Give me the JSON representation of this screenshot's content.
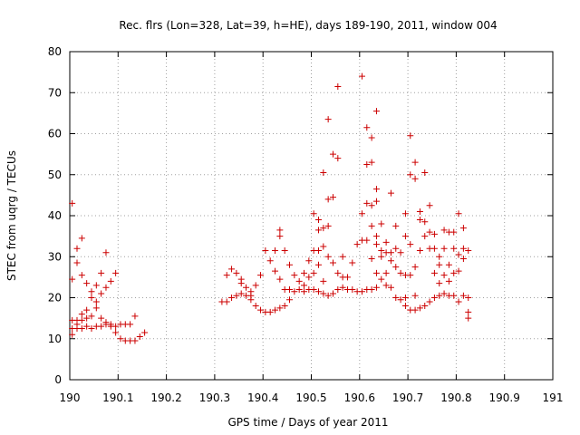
{
  "chart_data": {
    "type": "scatter",
    "title": "Rec. flrs (Lon=328, Lat=39, h=HE), days 189-190, 2011, window 004",
    "xlabel": "GPS time / Days of year 2011",
    "ylabel": "STEC from uqrg / TECUs",
    "xlim": [
      190,
      191
    ],
    "ylim": [
      0,
      80
    ],
    "xticks": [
      190,
      190.1,
      190.2,
      190.3,
      190.4,
      190.5,
      190.6,
      190.7,
      190.8,
      190.9,
      191
    ],
    "xtick_labels": [
      "190",
      "190.1",
      "190.2",
      "190.3",
      "190.4",
      "190.5",
      "190.6",
      "190.7",
      "190.8",
      "190.9",
      "191"
    ],
    "yticks": [
      0,
      10,
      20,
      30,
      40,
      50,
      60,
      70,
      80
    ],
    "ytick_labels": [
      "0",
      "10",
      "20",
      "30",
      "40",
      "50",
      "60",
      "70",
      "80"
    ],
    "grid": true,
    "marker": "+",
    "color": "#cc0000",
    "series": [
      {
        "points": [
          [
            190.005,
            43.0
          ],
          [
            190.005,
            24.5
          ],
          [
            190.005,
            14.5
          ],
          [
            190.005,
            12.5
          ],
          [
            190.005,
            11.0
          ],
          [
            190.015,
            32.0
          ],
          [
            190.015,
            28.5
          ],
          [
            190.015,
            14.5
          ],
          [
            190.015,
            13.5
          ],
          [
            190.015,
            12.5
          ],
          [
            190.025,
            34.5
          ],
          [
            190.025,
            25.5
          ],
          [
            190.025,
            16.0
          ],
          [
            190.025,
            14.5
          ],
          [
            190.025,
            12.5
          ],
          [
            190.035,
            23.5
          ],
          [
            190.035,
            17.0
          ],
          [
            190.035,
            15.0
          ],
          [
            190.035,
            13.0
          ],
          [
            190.045,
            21.5
          ],
          [
            190.045,
            20.0
          ],
          [
            190.045,
            15.5
          ],
          [
            190.045,
            12.5
          ],
          [
            190.055,
            23.0
          ],
          [
            190.055,
            19.0
          ],
          [
            190.055,
            17.5
          ],
          [
            190.055,
            13.0
          ],
          [
            190.065,
            26.0
          ],
          [
            190.065,
            21.0
          ],
          [
            190.065,
            15.0
          ],
          [
            190.065,
            13.0
          ],
          [
            190.075,
            31.0
          ],
          [
            190.075,
            22.5
          ],
          [
            190.075,
            14.0
          ],
          [
            190.075,
            13.5
          ],
          [
            190.085,
            24.0
          ],
          [
            190.085,
            13.5
          ],
          [
            190.085,
            13.0
          ],
          [
            190.095,
            26.0
          ],
          [
            190.095,
            13.0
          ],
          [
            190.095,
            11.5
          ],
          [
            190.105,
            13.5
          ],
          [
            190.105,
            10.0
          ],
          [
            190.115,
            13.5
          ],
          [
            190.115,
            9.5
          ],
          [
            190.125,
            13.5
          ],
          [
            190.125,
            9.5
          ],
          [
            190.135,
            15.5
          ],
          [
            190.135,
            9.5
          ],
          [
            190.145,
            10.5
          ],
          [
            190.155,
            11.5
          ],
          [
            190.315,
            19.0
          ],
          [
            190.325,
            25.5
          ],
          [
            190.325,
            19.0
          ],
          [
            190.335,
            27.0
          ],
          [
            190.335,
            20.0
          ],
          [
            190.345,
            26.0
          ],
          [
            190.345,
            20.5
          ],
          [
            190.355,
            24.5
          ],
          [
            190.355,
            23.5
          ],
          [
            190.355,
            21.0
          ],
          [
            190.365,
            22.5
          ],
          [
            190.365,
            20.5
          ],
          [
            190.375,
            21.5
          ],
          [
            190.375,
            20.5
          ],
          [
            190.375,
            19.5
          ],
          [
            190.385,
            23.0
          ],
          [
            190.385,
            18.0
          ],
          [
            190.395,
            25.5
          ],
          [
            190.395,
            17.0
          ],
          [
            190.405,
            31.5
          ],
          [
            190.405,
            16.5
          ],
          [
            190.415,
            29.0
          ],
          [
            190.415,
            16.5
          ],
          [
            190.425,
            31.5
          ],
          [
            190.425,
            26.5
          ],
          [
            190.425,
            17.0
          ],
          [
            190.435,
            36.5
          ],
          [
            190.435,
            35.0
          ],
          [
            190.435,
            24.5
          ],
          [
            190.435,
            17.5
          ],
          [
            190.445,
            31.5
          ],
          [
            190.445,
            22.0
          ],
          [
            190.445,
            18.0
          ],
          [
            190.455,
            28.0
          ],
          [
            190.455,
            22.0
          ],
          [
            190.455,
            19.5
          ],
          [
            190.465,
            25.5
          ],
          [
            190.465,
            21.5
          ],
          [
            190.475,
            24.0
          ],
          [
            190.475,
            22.0
          ],
          [
            190.485,
            26.0
          ],
          [
            190.485,
            23.0
          ],
          [
            190.485,
            21.5
          ],
          [
            190.495,
            29.0
          ],
          [
            190.495,
            25.0
          ],
          [
            190.495,
            22.0
          ],
          [
            190.505,
            40.5
          ],
          [
            190.505,
            31.5
          ],
          [
            190.505,
            26.0
          ],
          [
            190.505,
            22.0
          ],
          [
            190.515,
            39.0
          ],
          [
            190.515,
            36.5
          ],
          [
            190.515,
            31.5
          ],
          [
            190.515,
            28.0
          ],
          [
            190.515,
            21.5
          ],
          [
            190.525,
            50.5
          ],
          [
            190.525,
            37.0
          ],
          [
            190.525,
            32.5
          ],
          [
            190.525,
            24.0
          ],
          [
            190.525,
            21.0
          ],
          [
            190.535,
            63.5
          ],
          [
            190.535,
            44.0
          ],
          [
            190.535,
            37.5
          ],
          [
            190.535,
            30.0
          ],
          [
            190.535,
            20.5
          ],
          [
            190.545,
            55.0
          ],
          [
            190.545,
            44.5
          ],
          [
            190.545,
            28.5
          ],
          [
            190.545,
            21.0
          ],
          [
            190.555,
            71.5
          ],
          [
            190.555,
            54.0
          ],
          [
            190.555,
            26.0
          ],
          [
            190.555,
            22.0
          ],
          [
            190.565,
            30.0
          ],
          [
            190.565,
            25.0
          ],
          [
            190.565,
            22.5
          ],
          [
            190.575,
            25.0
          ],
          [
            190.575,
            22.0
          ],
          [
            190.585,
            28.5
          ],
          [
            190.585,
            22.0
          ],
          [
            190.595,
            33.0
          ],
          [
            190.595,
            21.5
          ],
          [
            190.605,
            74.0
          ],
          [
            190.605,
            40.5
          ],
          [
            190.605,
            34.0
          ],
          [
            190.605,
            21.5
          ],
          [
            190.615,
            61.5
          ],
          [
            190.615,
            52.5
          ],
          [
            190.615,
            43.0
          ],
          [
            190.615,
            34.0
          ],
          [
            190.615,
            22.0
          ],
          [
            190.625,
            59.0
          ],
          [
            190.625,
            53.0
          ],
          [
            190.625,
            42.5
          ],
          [
            190.625,
            37.5
          ],
          [
            190.625,
            29.5
          ],
          [
            190.625,
            22.0
          ],
          [
            190.635,
            65.5
          ],
          [
            190.635,
            46.5
          ],
          [
            190.635,
            43.5
          ],
          [
            190.635,
            35.0
          ],
          [
            190.635,
            33.0
          ],
          [
            190.635,
            26.0
          ],
          [
            190.635,
            22.5
          ],
          [
            190.645,
            38.0
          ],
          [
            190.645,
            31.5
          ],
          [
            190.645,
            30.0
          ],
          [
            190.645,
            24.5
          ],
          [
            190.655,
            33.5
          ],
          [
            190.655,
            31.0
          ],
          [
            190.655,
            26.0
          ],
          [
            190.655,
            23.0
          ],
          [
            190.665,
            45.5
          ],
          [
            190.665,
            31.0
          ],
          [
            190.665,
            29.0
          ],
          [
            190.665,
            22.5
          ],
          [
            190.675,
            37.5
          ],
          [
            190.675,
            32.0
          ],
          [
            190.675,
            27.5
          ],
          [
            190.675,
            20.0
          ],
          [
            190.685,
            31.0
          ],
          [
            190.685,
            26.0
          ],
          [
            190.685,
            19.5
          ],
          [
            190.695,
            40.5
          ],
          [
            190.695,
            35.0
          ],
          [
            190.695,
            25.5
          ],
          [
            190.695,
            20.0
          ],
          [
            190.695,
            18.0
          ],
          [
            190.705,
            59.5
          ],
          [
            190.705,
            50.0
          ],
          [
            190.705,
            33.0
          ],
          [
            190.705,
            25.5
          ],
          [
            190.705,
            17.0
          ],
          [
            190.715,
            53.0
          ],
          [
            190.715,
            49.0
          ],
          [
            190.715,
            27.5
          ],
          [
            190.715,
            20.5
          ],
          [
            190.715,
            17.0
          ],
          [
            190.725,
            41.0
          ],
          [
            190.725,
            39.0
          ],
          [
            190.725,
            31.5
          ],
          [
            190.725,
            17.5
          ],
          [
            190.735,
            50.5
          ],
          [
            190.735,
            38.5
          ],
          [
            190.735,
            35.0
          ],
          [
            190.735,
            18.0
          ],
          [
            190.745,
            42.5
          ],
          [
            190.745,
            36.0
          ],
          [
            190.745,
            32.0
          ],
          [
            190.745,
            19.0
          ],
          [
            190.755,
            35.5
          ],
          [
            190.755,
            32.0
          ],
          [
            190.755,
            26.0
          ],
          [
            190.755,
            20.0
          ],
          [
            190.765,
            30.0
          ],
          [
            190.765,
            28.0
          ],
          [
            190.765,
            23.5
          ],
          [
            190.765,
            20.5
          ],
          [
            190.775,
            36.5
          ],
          [
            190.775,
            32.0
          ],
          [
            190.775,
            25.5
          ],
          [
            190.775,
            21.0
          ],
          [
            190.785,
            36.0
          ],
          [
            190.785,
            28.0
          ],
          [
            190.785,
            24.0
          ],
          [
            190.785,
            20.5
          ],
          [
            190.795,
            36.0
          ],
          [
            190.795,
            32.0
          ],
          [
            190.795,
            26.0
          ],
          [
            190.795,
            20.5
          ],
          [
            190.805,
            40.5
          ],
          [
            190.805,
            30.5
          ],
          [
            190.805,
            26.5
          ],
          [
            190.805,
            19.0
          ],
          [
            190.815,
            37.0
          ],
          [
            190.815,
            32.0
          ],
          [
            190.815,
            29.5
          ],
          [
            190.815,
            20.5
          ],
          [
            190.825,
            31.5
          ],
          [
            190.825,
            20.0
          ],
          [
            190.825,
            16.5
          ],
          [
            190.825,
            15.0
          ]
        ]
      }
    ]
  }
}
